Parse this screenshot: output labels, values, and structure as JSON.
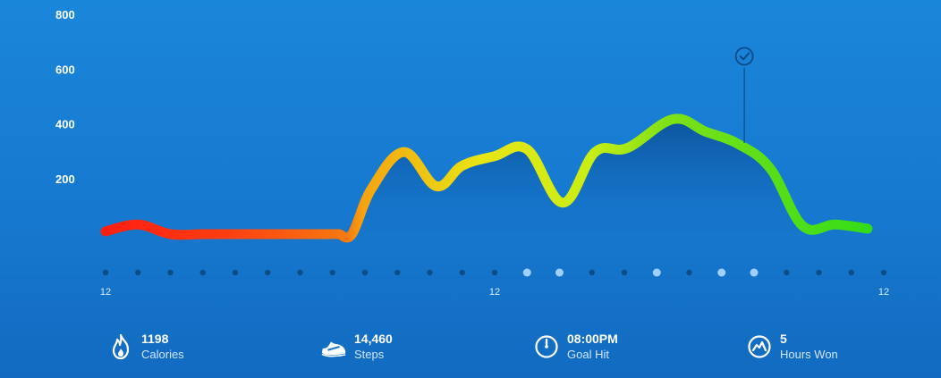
{
  "chart_data": {
    "type": "area",
    "y_ticks": [
      "800",
      "600",
      "400",
      "200"
    ],
    "ylim": [
      0,
      800
    ],
    "x_tick_labels": [
      {
        "index": 0,
        "label": "12"
      },
      {
        "index": 12,
        "label": "12"
      },
      {
        "index": 24,
        "label": "12"
      }
    ],
    "hours": 24,
    "values": [
      10,
      35,
      0,
      0,
      0,
      0,
      0,
      0,
      0,
      0,
      165,
      300,
      175,
      250,
      285,
      310,
      115,
      300,
      315,
      420,
      375,
      330,
      240,
      30,
      35,
      20
    ],
    "x_values": [
      0,
      1,
      2,
      3,
      4,
      5,
      6,
      7,
      7.2,
      7.6,
      8.2,
      9.2,
      10.2,
      11.0,
      12.0,
      13.0,
      14.1,
      15.1,
      16.1,
      17.5,
      18.5,
      19.5,
      20.5,
      21.5,
      22.5,
      23.5
    ],
    "highlighted_dots": [
      13,
      14,
      17,
      19,
      20
    ],
    "goal_hit_hour": 19.7,
    "colors": {
      "low": "#ff1e12",
      "mid": "#f7a10f",
      "high_yellow": "#e6ec14",
      "high_green": "#3ee018",
      "area_top": "#0a4f96",
      "dot_dark": "#0b4d86",
      "dot_light": "#9fd0ff"
    },
    "grid": false
  },
  "stats": [
    {
      "value": "1198",
      "label": "Calories",
      "icon": "flame-icon"
    },
    {
      "value": "14,460",
      "label": "Steps",
      "icon": "shoe-icon"
    },
    {
      "value": "08:00PM",
      "label": "Goal Hit",
      "icon": "clock-icon"
    },
    {
      "value": "5",
      "label": "Hours Won",
      "icon": "hours-won-icon"
    }
  ]
}
